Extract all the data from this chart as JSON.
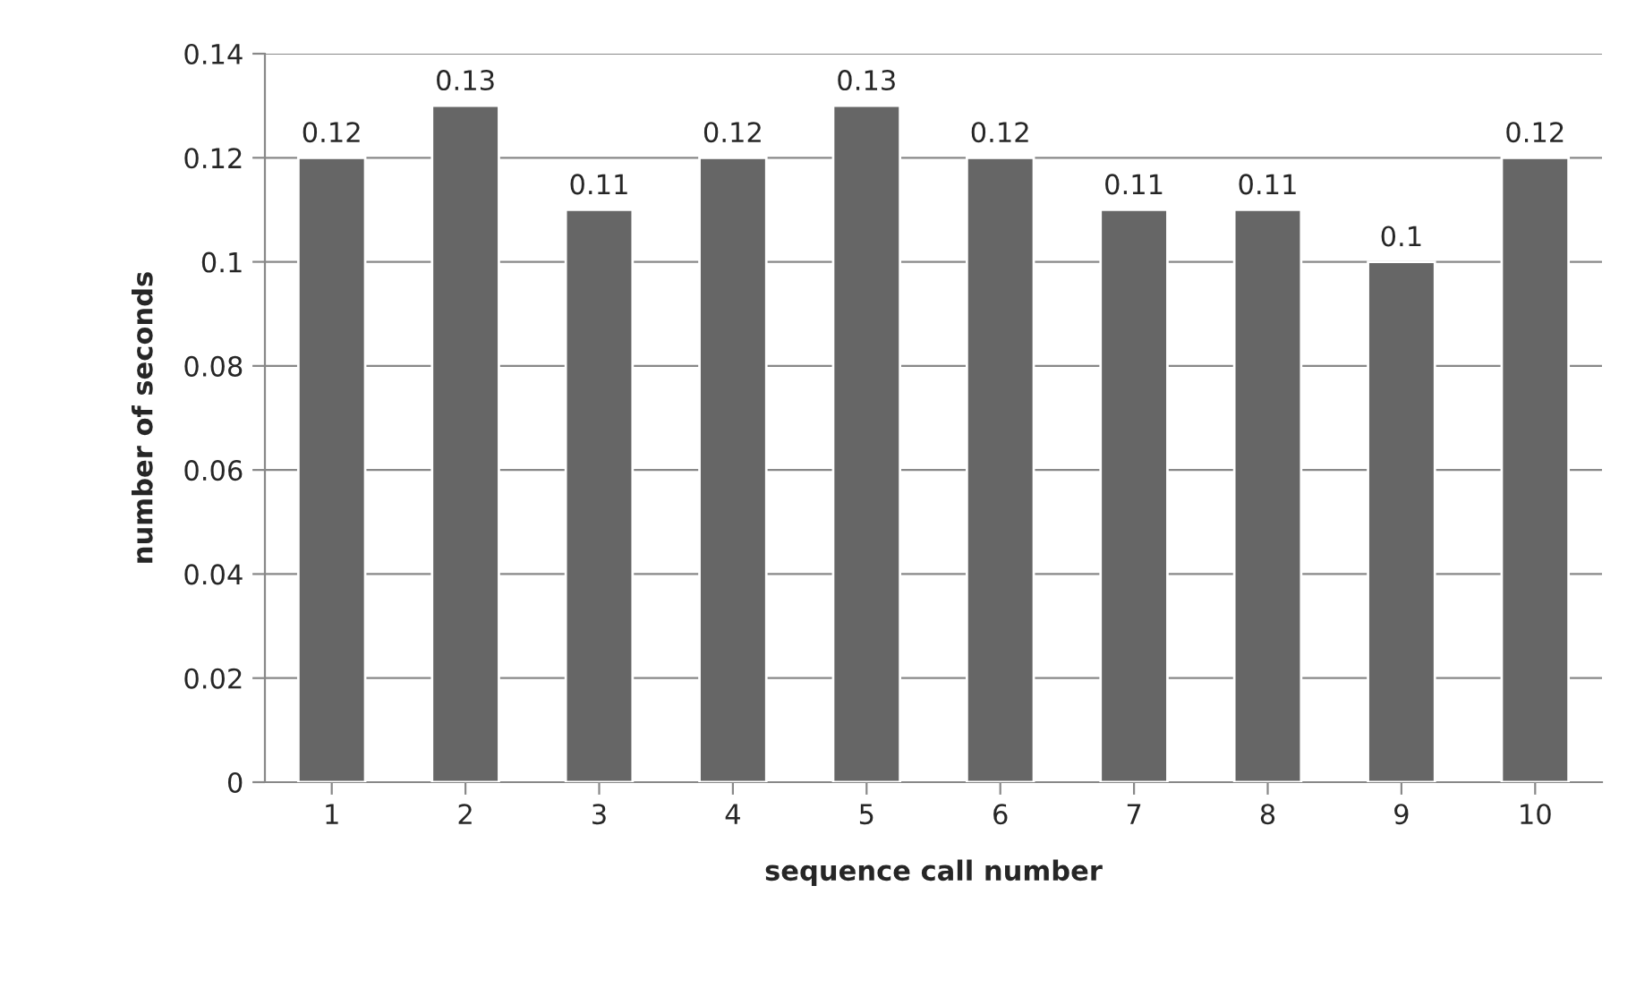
{
  "chart_data": {
    "type": "bar",
    "xlabel": "sequence call number",
    "ylabel": "number of seconds",
    "categories": [
      "1",
      "2",
      "3",
      "4",
      "5",
      "6",
      "7",
      "8",
      "9",
      "10"
    ],
    "values": [
      0.12,
      0.13,
      0.11,
      0.12,
      0.13,
      0.12,
      0.11,
      0.11,
      0.1,
      0.12
    ],
    "color": "#666666",
    "ylim": [
      0,
      0.14
    ],
    "yticks": [
      0,
      0.02,
      0.04,
      0.06,
      0.08,
      0.1,
      0.12,
      0.14
    ],
    "grid": "y",
    "data_labels": true,
    "legend": false
  }
}
